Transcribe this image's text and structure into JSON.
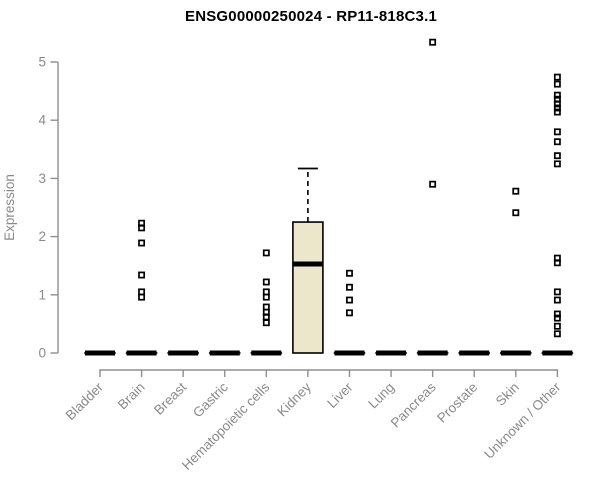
{
  "chart_data": {
    "type": "boxplot",
    "title": "ENSG00000250024 - RP11-818C3.1",
    "xlabel": "",
    "ylabel": "Expression",
    "ylim": [
      0,
      5
    ],
    "yticks": [
      0,
      1,
      2,
      3,
      4,
      5
    ],
    "grid": false,
    "legend": "none",
    "categories": [
      "Bladder",
      "Brain",
      "Breast",
      "Gastric",
      "Hematopoietic cells",
      "Kidney",
      "Liver",
      "Lung",
      "Pancreas",
      "Prostate",
      "Skin",
      "Unknown / Other"
    ],
    "boxes": [
      {
        "category": "Bladder",
        "q1": 0,
        "median": 0,
        "q3": 0,
        "whisker_low": 0,
        "whisker_high": 0,
        "outliers": []
      },
      {
        "category": "Brain",
        "q1": 0,
        "median": 0,
        "q3": 0,
        "whisker_low": 0,
        "whisker_high": 0,
        "outliers": [
          2.23,
          2.15,
          1.89,
          1.34,
          1.05,
          0.96
        ]
      },
      {
        "category": "Breast",
        "q1": 0,
        "median": 0,
        "q3": 0,
        "whisker_low": 0,
        "whisker_high": 0,
        "outliers": []
      },
      {
        "category": "Gastric",
        "q1": 0,
        "median": 0,
        "q3": 0,
        "whisker_low": 0,
        "whisker_high": 0,
        "outliers": []
      },
      {
        "category": "Hematopoietic cells",
        "q1": 0,
        "median": 0,
        "q3": 0,
        "whisker_low": 0,
        "whisker_high": 0,
        "outliers": [
          1.72,
          1.22,
          1.05,
          0.96,
          0.79,
          0.7,
          0.62,
          0.52
        ]
      },
      {
        "category": "Kidney",
        "q1": 0,
        "median": 1.53,
        "q3": 2.25,
        "whisker_low": 0,
        "whisker_high": 3.17,
        "outliers": []
      },
      {
        "category": "Liver",
        "q1": 0,
        "median": 0,
        "q3": 0,
        "whisker_low": 0,
        "whisker_high": 0,
        "outliers": [
          1.37,
          1.13,
          0.91,
          0.69
        ]
      },
      {
        "category": "Lung",
        "q1": 0,
        "median": 0,
        "q3": 0,
        "whisker_low": 0,
        "whisker_high": 0,
        "outliers": []
      },
      {
        "category": "Pancreas",
        "q1": 0,
        "median": 0,
        "q3": 0,
        "whisker_low": 0,
        "whisker_high": 0,
        "outliers": [
          5.34,
          2.9
        ]
      },
      {
        "category": "Prostate",
        "q1": 0,
        "median": 0,
        "q3": 0,
        "whisker_low": 0,
        "whisker_high": 0,
        "outliers": []
      },
      {
        "category": "Skin",
        "q1": 0,
        "median": 0,
        "q3": 0,
        "whisker_low": 0,
        "whisker_high": 0,
        "outliers": [
          2.78,
          2.41
        ]
      },
      {
        "category": "Unknown / Other",
        "q1": 0,
        "median": 0,
        "q3": 0,
        "whisker_low": 0,
        "whisker_high": 0,
        "outliers": [
          4.74,
          4.62,
          4.43,
          4.36,
          4.28,
          4.21,
          4.14,
          3.8,
          3.63,
          3.39,
          3.25,
          1.63,
          1.55,
          1.05,
          0.91,
          0.67,
          0.6,
          0.46,
          0.33
        ]
      }
    ],
    "colors": {
      "box_fill": "#ECE7CB",
      "box_border": "#000000",
      "median": "#000000",
      "outlier": "#000000",
      "axis_line": "#8f8f8f",
      "tick_label": "#8a8a8a",
      "axis_title": "#8a8a8a",
      "title": "#000000",
      "background": "#ffffff"
    }
  }
}
